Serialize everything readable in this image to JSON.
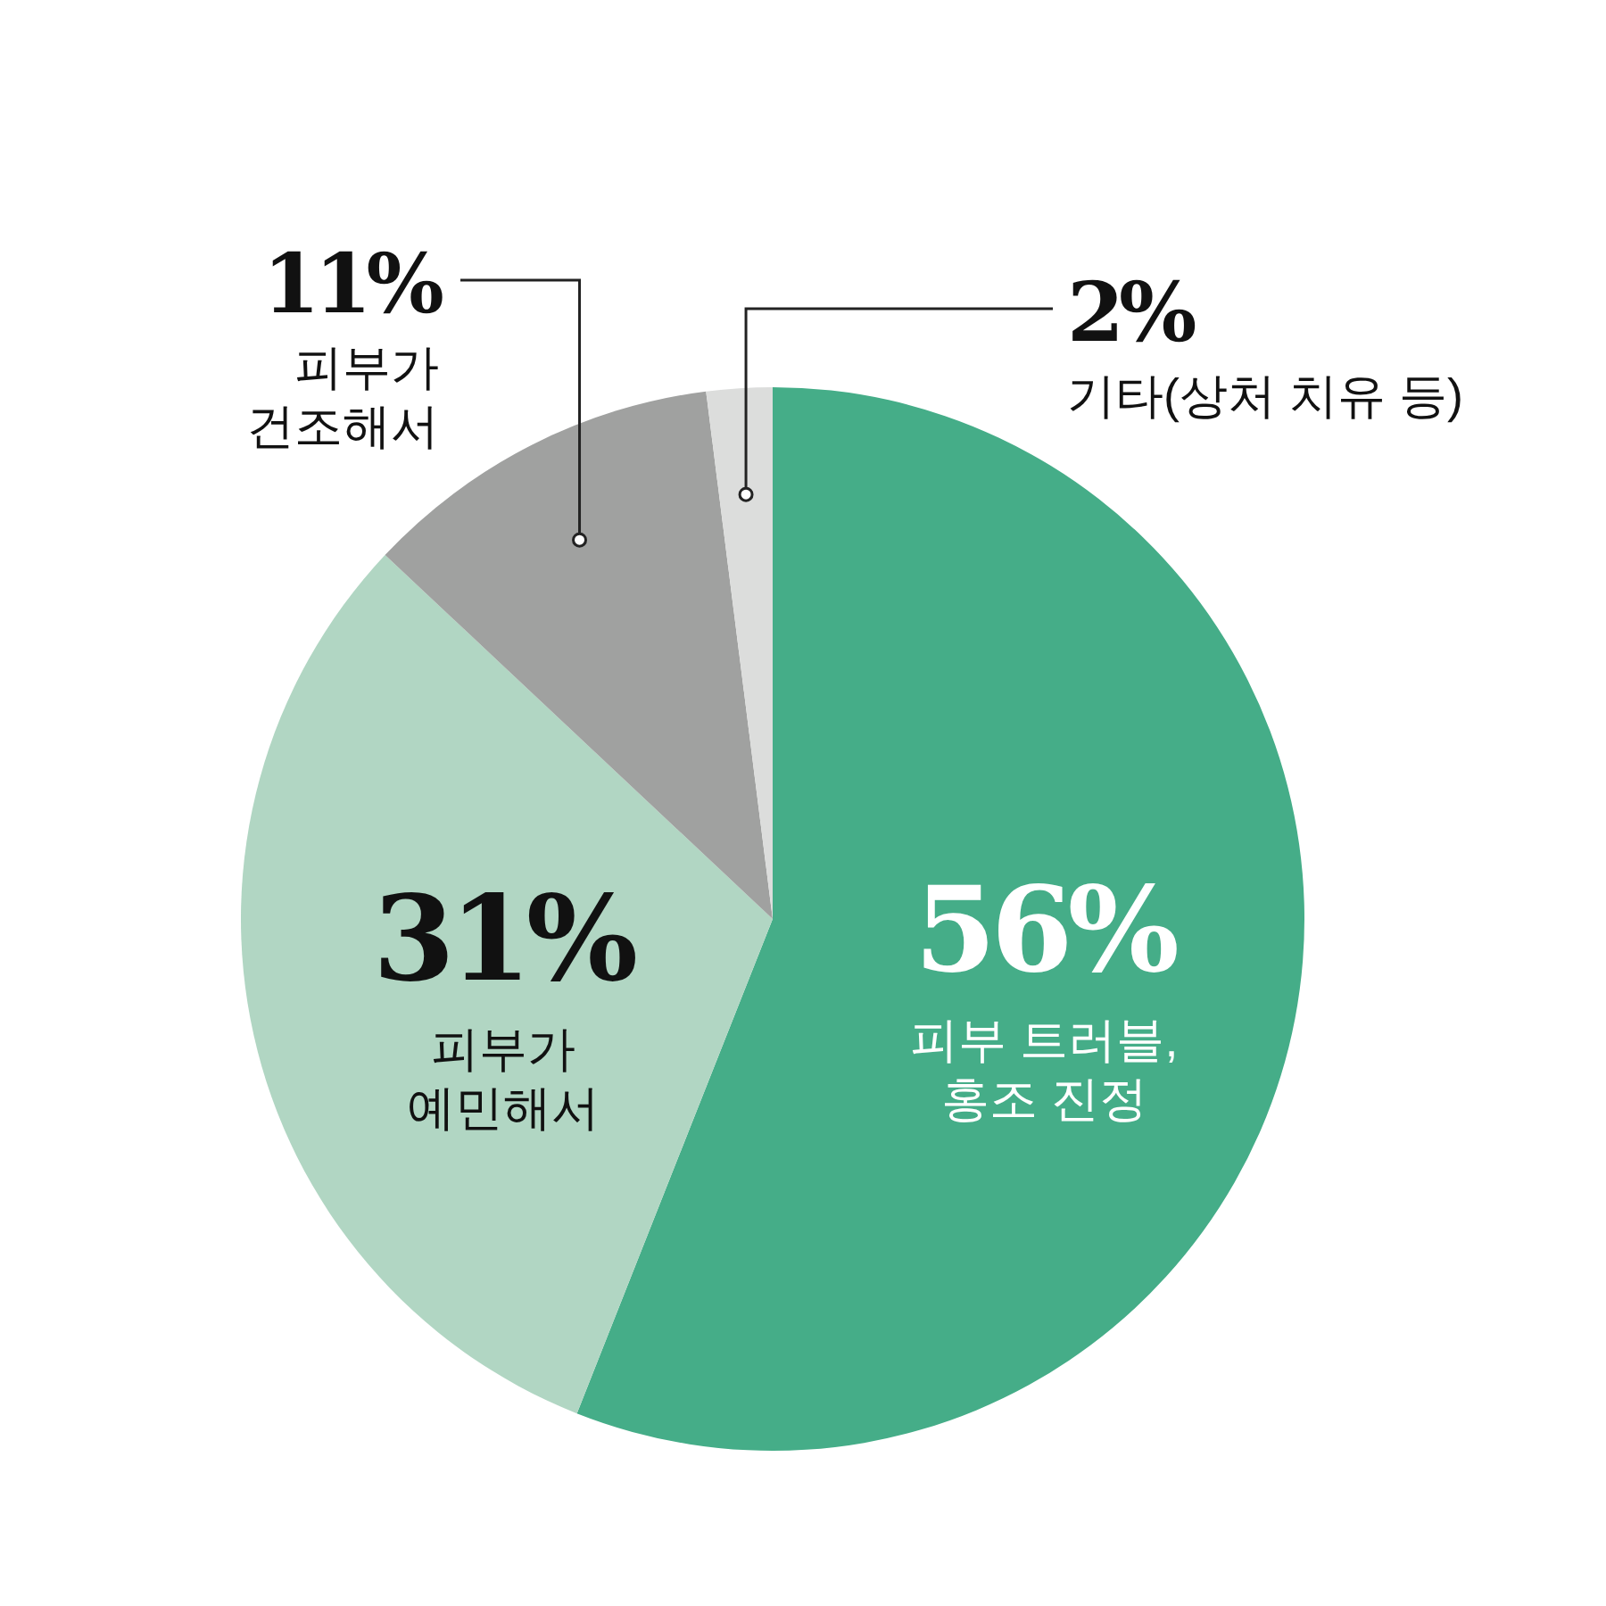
{
  "chart_data": {
    "type": "pie",
    "categories": [
      "피부 트러블,\n홍조 진정",
      "피부가\n예민해서",
      "피부가\n건조해서",
      "기타(상처 치유 등)"
    ],
    "values": [
      56,
      31,
      11,
      2
    ],
    "value_labels": [
      "56%",
      "31%",
      "11%",
      "2%"
    ],
    "colors": [
      "#45ad88",
      "#b1d6c3",
      "#a0a1a0",
      "#dcdddc"
    ]
  }
}
